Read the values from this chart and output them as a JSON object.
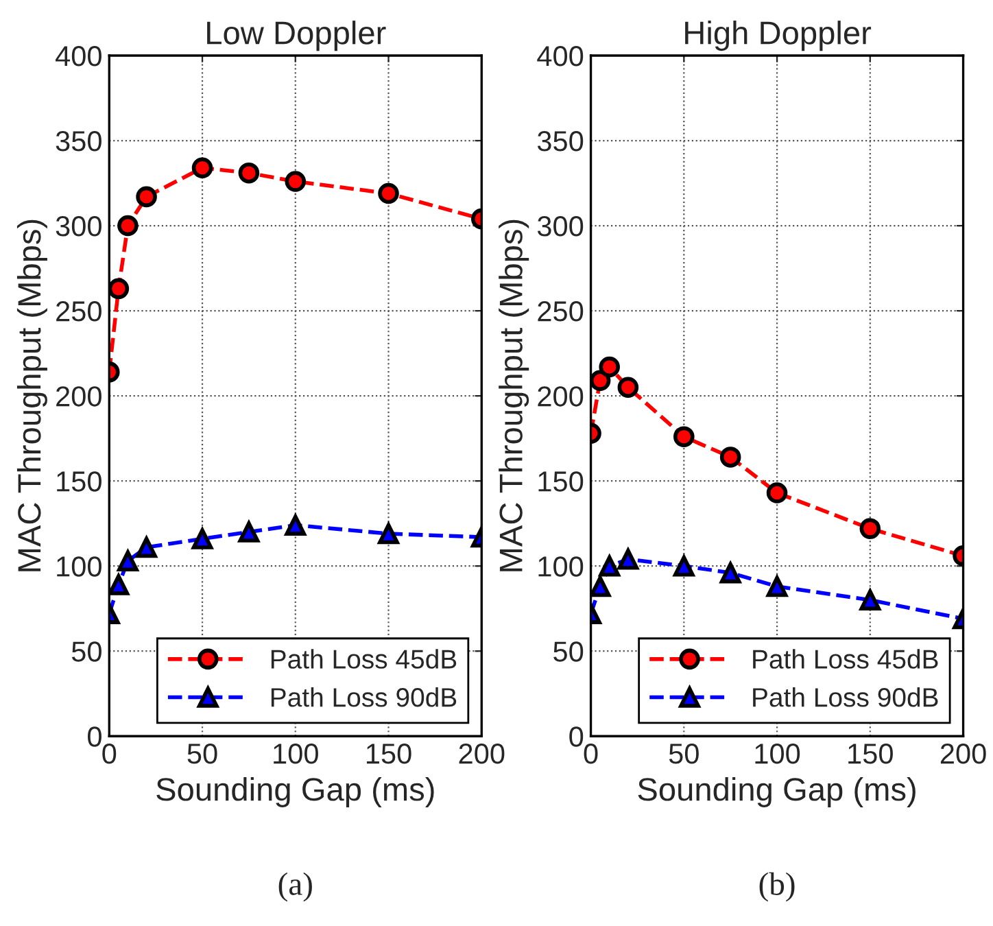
{
  "chart_data": [
    {
      "type": "line",
      "title": "Low Doppler",
      "xlabel": "Sounding Gap (ms)",
      "ylabel": "MAC Throughput (Mbps)",
      "x": [
        0,
        5,
        10,
        20,
        50,
        75,
        100,
        150,
        200
      ],
      "series": [
        {
          "name": "Path Loss 45dB",
          "color": "#ff0000",
          "marker": "circle",
          "values": [
            214,
            263,
            300,
            317,
            334,
            331,
            326,
            319,
            304
          ]
        },
        {
          "name": "Path Loss 90dB",
          "color": "#0000ff",
          "marker": "triangle",
          "values": [
            72,
            89,
            103,
            111,
            116,
            120,
            124,
            119,
            117
          ]
        }
      ],
      "xlim": [
        0,
        200
      ],
      "xticks": [
        0,
        50,
        100,
        150,
        200
      ],
      "ylim": [
        0,
        400
      ],
      "yticks": [
        0,
        50,
        100,
        150,
        200,
        250,
        300,
        350,
        400
      ],
      "grid": true,
      "legend": "bottom right",
      "line_style": "dashed",
      "annotations": [
        "(a)"
      ]
    },
    {
      "type": "line",
      "title": "High Doppler",
      "xlabel": "Sounding Gap (ms)",
      "ylabel": "MAC Throughput (Mbps)",
      "x": [
        0,
        5,
        10,
        20,
        50,
        75,
        100,
        150,
        200
      ],
      "series": [
        {
          "name": "Path Loss 45dB",
          "color": "#ff0000",
          "marker": "circle",
          "values": [
            178,
            209,
            217,
            205,
            176,
            164,
            143,
            122,
            106
          ]
        },
        {
          "name": "Path Loss 90dB",
          "color": "#0000ff",
          "marker": "triangle",
          "values": [
            72,
            88,
            100,
            104,
            100,
            96,
            88,
            80,
            69
          ]
        }
      ],
      "xlim": [
        0,
        200
      ],
      "xticks": [
        0,
        50,
        100,
        150,
        200
      ],
      "ylim": [
        0,
        400
      ],
      "yticks": [
        0,
        50,
        100,
        150,
        200,
        250,
        300,
        350,
        400
      ],
      "grid": true,
      "legend": "bottom right",
      "line_style": "dashed",
      "annotations": [
        "(b)"
      ]
    }
  ]
}
